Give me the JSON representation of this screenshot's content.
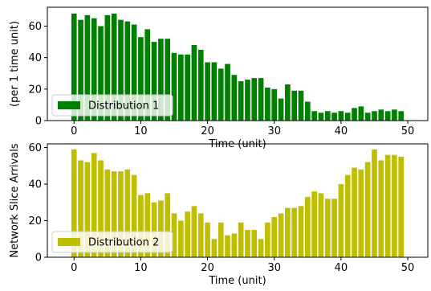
{
  "chart_data": [
    {
      "type": "bar",
      "color": "#008000",
      "series": [
        {
          "name": "Distribution 1",
          "x": [
            0,
            1,
            2,
            3,
            4,
            5,
            6,
            7,
            8,
            9,
            10,
            11,
            12,
            13,
            14,
            15,
            16,
            17,
            18,
            19,
            20,
            21,
            22,
            23,
            24,
            25,
            26,
            27,
            28,
            29,
            30,
            31,
            32,
            33,
            34,
            35,
            36,
            37,
            38,
            39,
            40,
            41,
            42,
            43,
            44,
            45,
            46,
            47,
            48,
            49
          ],
          "values": [
            68,
            64,
            67,
            65,
            60,
            67,
            68,
            64,
            63,
            61,
            53,
            58,
            50,
            52,
            52,
            43,
            42,
            42,
            48,
            45,
            37,
            37,
            33,
            36,
            29,
            25,
            26,
            27,
            27,
            21,
            20,
            14,
            23,
            19,
            19,
            12,
            6,
            5,
            6,
            5,
            6,
            5,
            8,
            9,
            5,
            6,
            7,
            6,
            7,
            6
          ]
        }
      ],
      "xlim": [
        -4,
        53
      ],
      "ylim": [
        0,
        72
      ],
      "xticks": [
        0,
        10,
        20,
        30,
        40,
        50
      ],
      "yticks": [
        0,
        20,
        40,
        60
      ],
      "xlabel": "Time (unit)",
      "ylabel": "(per 1 time unit)",
      "legend_position": "lower-left"
    },
    {
      "type": "bar",
      "color": "#bfbf00",
      "series": [
        {
          "name": "Distribution 2",
          "x": [
            0,
            1,
            2,
            3,
            4,
            5,
            6,
            7,
            8,
            9,
            10,
            11,
            12,
            13,
            14,
            15,
            16,
            17,
            18,
            19,
            20,
            21,
            22,
            23,
            24,
            25,
            26,
            27,
            28,
            29,
            30,
            31,
            32,
            33,
            34,
            35,
            36,
            37,
            38,
            39,
            40,
            41,
            42,
            43,
            44,
            45,
            46,
            47,
            48,
            49
          ],
          "values": [
            59,
            53,
            52,
            57,
            53,
            48,
            47,
            47,
            48,
            45,
            34,
            35,
            30,
            31,
            35,
            24,
            20,
            25,
            28,
            24,
            19,
            10,
            19,
            12,
            13,
            19,
            15,
            15,
            10,
            19,
            22,
            24,
            27,
            27,
            28,
            33,
            36,
            35,
            32,
            32,
            40,
            45,
            49,
            48,
            52,
            59,
            53,
            56,
            56,
            55
          ]
        }
      ],
      "xlim": [
        -4,
        53
      ],
      "ylim": [
        0,
        62
      ],
      "xticks": [
        0,
        10,
        20,
        30,
        40,
        50
      ],
      "yticks": [
        0,
        20,
        40,
        60
      ],
      "xlabel": "Time (unit)",
      "ylabel": "Network Slice Arrivals",
      "legend_position": "lower-left"
    }
  ]
}
